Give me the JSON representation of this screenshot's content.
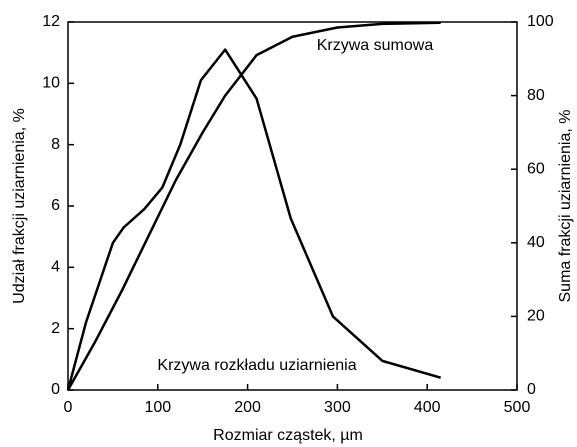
{
  "chart_data": {
    "type": "line",
    "xlabel": "Rozmiar cząstek, µm",
    "ylabel": "Udział frakcji uziarnienia, %",
    "y2label": "Suma frakcji uziarnienia, %",
    "annotations": [
      "Krzywa sumowa",
      "Krzywa rozkładu uziarnienia"
    ],
    "xlim": [
      0,
      500
    ],
    "xticks": [
      0,
      100,
      200,
      300,
      400,
      500
    ],
    "ylim": [
      0,
      12
    ],
    "yticks": [
      0,
      2,
      4,
      6,
      8,
      10,
      12
    ],
    "y2lim": [
      0,
      100
    ],
    "y2ticks": [
      0,
      20,
      40,
      60,
      80,
      100
    ],
    "series": [
      {
        "color": "#000000",
        "x": [
          0,
          20,
          50,
          62,
          85,
          105,
          125,
          148,
          175,
          210,
          248,
          295,
          350,
          415
        ],
        "values": [
          0,
          2.2,
          4.8,
          5.3,
          5.9,
          6.6,
          8.0,
          10.1,
          11.1,
          9.5,
          5.6,
          2.4,
          0.95,
          0.4
        ]
      },
      {
        "color": "#000000",
        "axis": "y2",
        "x": [
          0,
          30,
          60,
          90,
          120,
          150,
          175,
          210,
          250,
          300,
          350,
          415
        ],
        "values": [
          0,
          13,
          27,
          42,
          57,
          70,
          80,
          91,
          96,
          98.5,
          99.5,
          99.8
        ]
      }
    ]
  }
}
